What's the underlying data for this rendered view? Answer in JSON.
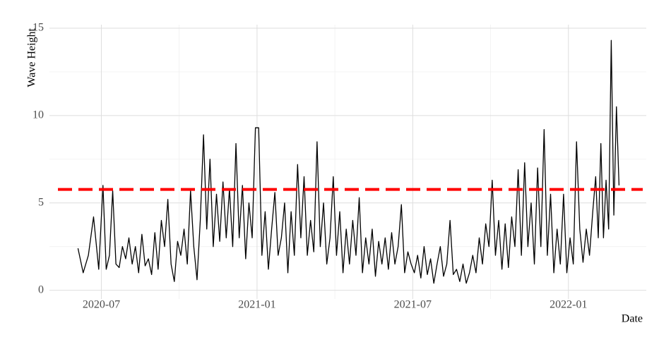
{
  "chart_data": {
    "type": "line",
    "y_label": "Wave Height",
    "x_label": "Date",
    "color": "#000000",
    "hline": 5.77,
    "hline_color": "#ff0000",
    "ylim": [
      -0.5,
      15.2
    ],
    "yticks": [
      0,
      5,
      10,
      15
    ],
    "yminor": [
      2.5,
      7.5,
      12.5
    ],
    "xlim": [
      "2020-05",
      "2022-03"
    ],
    "xticks": [
      "2020-07",
      "2021-01",
      "2021-07",
      "2022-01"
    ],
    "xminor": [
      "2020-10",
      "2021-04",
      "2021-10"
    ],
    "grid": true,
    "x": [
      "2020-06",
      "2020-06",
      "2020-06",
      "2020-06",
      "2020-06",
      "2020-07",
      "2020-07",
      "2020-07",
      "2020-07",
      "2020-07",
      "2020-07",
      "2020-07",
      "2020-07",
      "2020-08",
      "2020-08",
      "2020-08",
      "2020-08",
      "2020-08",
      "2020-08",
      "2020-08",
      "2020-08",
      "2020-09",
      "2020-09",
      "2020-09",
      "2020-09",
      "2020-09",
      "2020-09",
      "2020-09",
      "2020-09",
      "2020-10",
      "2020-10",
      "2020-10",
      "2020-10",
      "2020-10",
      "2020-10",
      "2020-10",
      "2020-10",
      "2020-11",
      "2020-11",
      "2020-11",
      "2020-11",
      "2020-11",
      "2020-11",
      "2020-11",
      "2020-11",
      "2020-12",
      "2020-12",
      "2020-12",
      "2020-12",
      "2020-12",
      "2020-12",
      "2020-12",
      "2020-12",
      "2021-01",
      "2021-01",
      "2021-01",
      "2021-01",
      "2021-01",
      "2021-01",
      "2021-01",
      "2021-01",
      "2021-02",
      "2021-02",
      "2021-02",
      "2021-02",
      "2021-02",
      "2021-02",
      "2021-02",
      "2021-02",
      "2021-03",
      "2021-03",
      "2021-03",
      "2021-03",
      "2021-03",
      "2021-03",
      "2021-03",
      "2021-03",
      "2021-04",
      "2021-04",
      "2021-04",
      "2021-04",
      "2021-04",
      "2021-04",
      "2021-04",
      "2021-04",
      "2021-05",
      "2021-05",
      "2021-05",
      "2021-05",
      "2021-05",
      "2021-05",
      "2021-05",
      "2021-05",
      "2021-06",
      "2021-06",
      "2021-06",
      "2021-06",
      "2021-06",
      "2021-06",
      "2021-06",
      "2021-06",
      "2021-07",
      "2021-07",
      "2021-07",
      "2021-07",
      "2021-07",
      "2021-07",
      "2021-07",
      "2021-07",
      "2021-08",
      "2021-08",
      "2021-08",
      "2021-08",
      "2021-08",
      "2021-08",
      "2021-08",
      "2021-08",
      "2021-09",
      "2021-09",
      "2021-09",
      "2021-09",
      "2021-09",
      "2021-09",
      "2021-09",
      "2021-09",
      "2021-10",
      "2021-10",
      "2021-10",
      "2021-10",
      "2021-10",
      "2021-10",
      "2021-10",
      "2021-10",
      "2021-11",
      "2021-11",
      "2021-11",
      "2021-11",
      "2021-11",
      "2021-11",
      "2021-11",
      "2021-11",
      "2021-12",
      "2021-12",
      "2021-12",
      "2021-12",
      "2021-12",
      "2021-12",
      "2021-12",
      "2021-12",
      "2022-01",
      "2022-01",
      "2022-01",
      "2022-01",
      "2022-01",
      "2022-01",
      "2022-01",
      "2022-01",
      "2022-02",
      "2022-02",
      "2022-02",
      "2022-02",
      "2022-02",
      "2022-02",
      "2022-02",
      "2022-02",
      "2022-02",
      "2022-02"
    ],
    "values": [
      2.4,
      1.0,
      2.0,
      4.2,
      1.2,
      6.0,
      1.2,
      2.0,
      5.7,
      1.5,
      1.3,
      2.5,
      1.8,
      3.0,
      1.5,
      2.5,
      1.0,
      3.2,
      1.4,
      1.8,
      0.9,
      3.3,
      1.2,
      4.0,
      2.5,
      5.2,
      1.5,
      0.5,
      2.8,
      2.0,
      3.5,
      1.5,
      5.7,
      2.5,
      0.6,
      4.0,
      8.9,
      3.5,
      7.5,
      2.5,
      5.5,
      2.8,
      6.2,
      3.0,
      5.8,
      2.5,
      8.4,
      3.0,
      6.0,
      1.8,
      5.0,
      3.0,
      9.3,
      9.3,
      2.0,
      4.5,
      1.2,
      3.5,
      5.6,
      2.0,
      3.0,
      5.0,
      1.0,
      4.5,
      2.0,
      7.2,
      3.0,
      6.5,
      2.0,
      4.0,
      2.2,
      8.5,
      2.5,
      5.0,
      1.5,
      3.0,
      6.5,
      2.0,
      4.5,
      1.0,
      3.5,
      1.5,
      4.0,
      2.0,
      5.3,
      1.0,
      3.0,
      1.5,
      3.5,
      0.8,
      2.8,
      1.5,
      3.0,
      1.2,
      3.3,
      1.5,
      2.5,
      4.9,
      1.0,
      2.2,
      1.5,
      1.0,
      2.0,
      0.7,
      2.5,
      0.9,
      1.8,
      0.4,
      1.5,
      2.5,
      0.8,
      1.5,
      4.0,
      0.9,
      1.2,
      0.5,
      1.5,
      0.4,
      1.0,
      2.0,
      1.0,
      3.0,
      1.5,
      3.8,
      2.5,
      6.3,
      2.0,
      4.0,
      1.2,
      3.8,
      1.3,
      4.2,
      2.5,
      6.9,
      2.0,
      7.3,
      2.5,
      5.0,
      1.5,
      7.0,
      2.5,
      9.2,
      2.0,
      5.5,
      1.0,
      3.5,
      1.5,
      5.5,
      1.0,
      3.0,
      1.5,
      8.5,
      3.5,
      1.6,
      3.5,
      2.0,
      4.5,
      6.5,
      3.0,
      8.4,
      3.0,
      6.3,
      3.5,
      14.3,
      4.3,
      10.5,
      6.0
    ]
  }
}
